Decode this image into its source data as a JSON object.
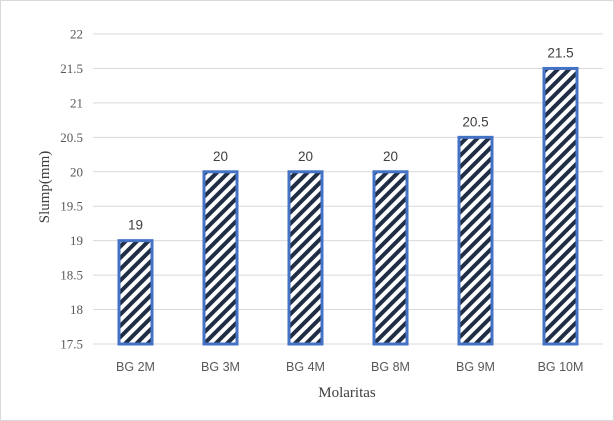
{
  "chart_data": {
    "type": "bar",
    "title": "",
    "xlabel": "Molaritas",
    "ylabel": "Slump(mm)",
    "ylim": [
      17.5,
      22
    ],
    "yticks": [
      "17.5",
      "18",
      "18.5",
      "19",
      "19.5",
      "20",
      "20.5",
      "21",
      "21.5",
      "22"
    ],
    "categories": [
      "BG 2M",
      "BG 3M",
      "BG 4M",
      "BG 8M",
      "BG 9M",
      "BG 10M"
    ],
    "values": [
      19,
      20,
      20,
      20,
      20.5,
      21.5
    ],
    "data_labels": [
      "19",
      "20",
      "20",
      "20",
      "20.5",
      "21.5"
    ],
    "grid": true,
    "bar_fill": "diagonal-hatch",
    "colors": {
      "bar_border": "#4472c4",
      "hatch": "#1f2d45",
      "grid": "#d9d9d9",
      "text": "#595959"
    }
  }
}
